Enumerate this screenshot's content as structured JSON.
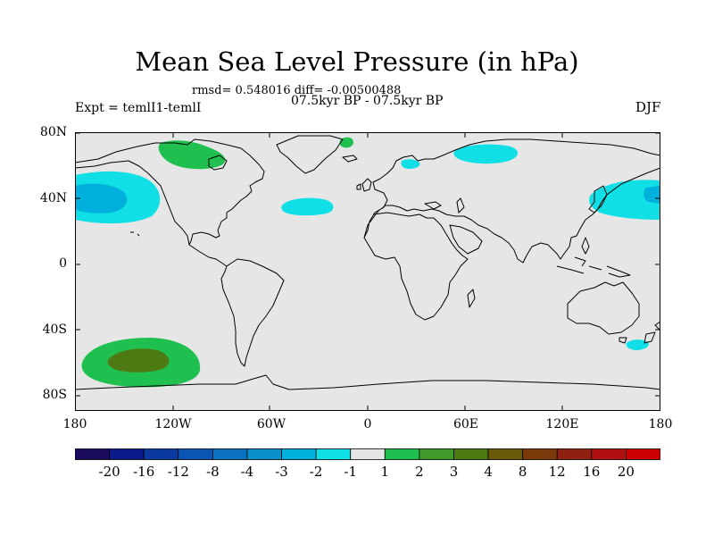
{
  "header": {
    "title": "Mean Sea Level Pressure (in hPa)",
    "rmsd_line": "rmsd= 0.548016 diff= -0.00500488",
    "period": "07.5kyr BP - 07.5kyr BP",
    "experiment": "Expt = temlI1-temlI",
    "season": "DJF"
  },
  "map": {
    "projection": "cylindrical equidistant",
    "background_color": "#e6e6e6",
    "lat_labels": [
      "80N",
      "40N",
      "0",
      "40S",
      "80S"
    ],
    "lon_labels": [
      "180",
      "120W",
      "60W",
      "0",
      "60E",
      "120E",
      "180"
    ],
    "anomalies": [
      {
        "region": "North Pacific",
        "lon": -150,
        "lat": 42,
        "level": "-3 to -1",
        "core": "-4 to -3"
      },
      {
        "region": "North Atlantic",
        "lon": -35,
        "lat": 37,
        "level": "-2 to -1"
      },
      {
        "region": "Arctic (Siberia)",
        "lon": 55,
        "lat": 72,
        "level": "-2 to -1"
      },
      {
        "region": "Scandinavia",
        "lon": 27,
        "lat": 64,
        "level": "-2 to -1"
      },
      {
        "region": "NW Pacific / Japan",
        "lon": 165,
        "lat": 43,
        "level": "-2 to -1",
        "core": "-3 to -2"
      },
      {
        "region": "SW Pacific",
        "lon": 165,
        "lat": -50,
        "level": "-2 to -1"
      },
      {
        "region": "Canadian Arctic",
        "lon": -90,
        "lat": 72,
        "level": "1 to 2"
      },
      {
        "region": "Greenland",
        "lon": -14,
        "lat": 77,
        "level": "1 to 2"
      },
      {
        "region": "South Pacific",
        "lon": -130,
        "lat": -60,
        "level": "1 to 2",
        "core": "3 to 4"
      }
    ]
  },
  "colorbar": {
    "labels": [
      "-20",
      "-16",
      "-12",
      "-8",
      "-4",
      "-3",
      "-2",
      "-1",
      "1",
      "2",
      "3",
      "4",
      "8",
      "12",
      "16",
      "20"
    ],
    "colors": [
      "#1a0a5c",
      "#0a1a8a",
      "#0a3aa0",
      "#0a55b4",
      "#0a70c0",
      "#0a90cc",
      "#00b0dc",
      "#10e0e6",
      "#e6e6e6",
      "#20c050",
      "#3f9a2a",
      "#4e7a14",
      "#6a5a0a",
      "#7a3a0a",
      "#902010",
      "#b01010",
      "#cc0000"
    ]
  }
}
